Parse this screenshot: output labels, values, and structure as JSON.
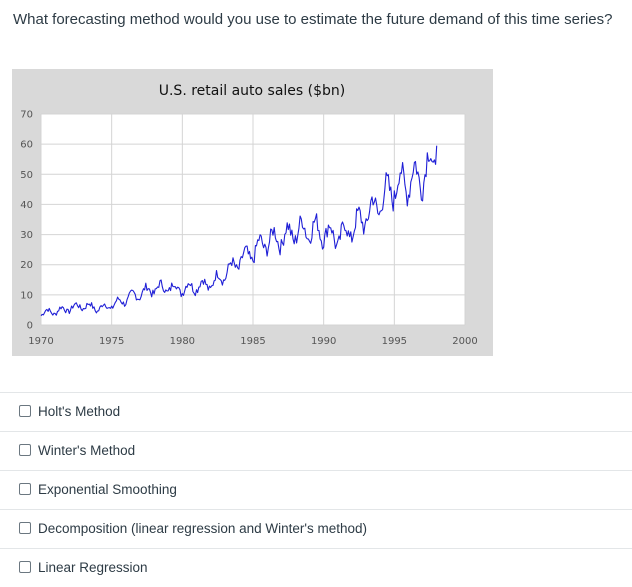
{
  "question": {
    "text": "What forecasting method would you use to estimate the future demand of this time series?"
  },
  "chart_data": {
    "type": "line",
    "title": "U.S. retail auto sales ($bn)",
    "xlabel": "",
    "ylabel": "",
    "xlim": [
      1970,
      2000
    ],
    "ylim": [
      0,
      70
    ],
    "xticks": [
      "1970",
      "1975",
      "1980",
      "1985",
      "1990",
      "1995",
      "2000"
    ],
    "yticks": [
      "0",
      "10",
      "20",
      "30",
      "40",
      "50",
      "60",
      "70"
    ],
    "grid": true,
    "legend": "none",
    "series": [
      {
        "color": "#1f1fd6",
        "x": [
          1970,
          1971,
          1972,
          1973,
          1974,
          1975,
          1976,
          1977,
          1978,
          1979,
          1980,
          1981,
          1982,
          1983,
          1984,
          1985,
          1986,
          1987,
          1988,
          1989,
          1990,
          1991,
          1992,
          1993,
          1994,
          1995,
          1996,
          1997,
          1998
        ],
        "values": [
          4,
          4.5,
          5.5,
          6.5,
          5.5,
          6.5,
          8.5,
          10.5,
          12,
          12.5,
          12,
          13,
          13.5,
          17,
          21,
          24,
          28,
          29,
          31,
          32,
          31,
          29,
          32,
          36,
          41,
          46,
          48,
          50,
          56
        ]
      }
    ]
  },
  "options": [
    {
      "label": "Holt's Method"
    },
    {
      "label": "Winter's Method"
    },
    {
      "label": "Exponential Smoothing"
    },
    {
      "label": "Decomposition (linear regression and Winter's method)"
    },
    {
      "label": "Linear Regression"
    }
  ]
}
